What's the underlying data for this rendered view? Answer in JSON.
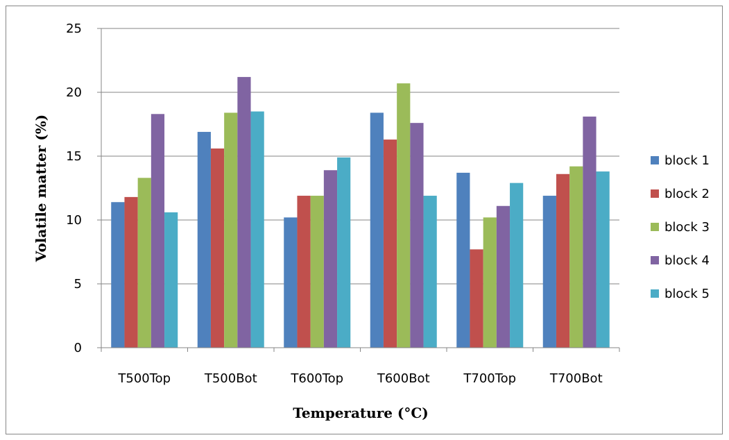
{
  "chart_data": {
    "type": "bar",
    "title": "",
    "xlabel": "Temperature (°C)",
    "ylabel": "Volatile matter (%)",
    "ylim": [
      0,
      25
    ],
    "yticks": [
      0,
      5,
      10,
      15,
      20,
      25
    ],
    "grid": true,
    "legend_position": "right",
    "categories": [
      "T500Top",
      "T500Bot",
      "T600Top",
      "T600Bot",
      "T700Top",
      "T700Bot"
    ],
    "series": [
      {
        "name": "block 1",
        "color": "#4F81BD",
        "values": [
          11.4,
          16.9,
          10.2,
          18.4,
          13.7,
          11.9
        ]
      },
      {
        "name": "block 2",
        "color": "#C0504D",
        "values": [
          11.8,
          15.6,
          11.9,
          16.3,
          7.7,
          13.6
        ]
      },
      {
        "name": "block 3",
        "color": "#9BBB59",
        "values": [
          13.3,
          18.4,
          11.9,
          20.7,
          10.2,
          14.2
        ]
      },
      {
        "name": "block 4",
        "color": "#8064A2",
        "values": [
          18.3,
          21.2,
          13.9,
          17.6,
          11.1,
          18.1
        ]
      },
      {
        "name": "block 5",
        "color": "#4BACC6",
        "values": [
          10.6,
          18.5,
          14.9,
          11.9,
          12.9,
          13.8
        ]
      }
    ]
  }
}
